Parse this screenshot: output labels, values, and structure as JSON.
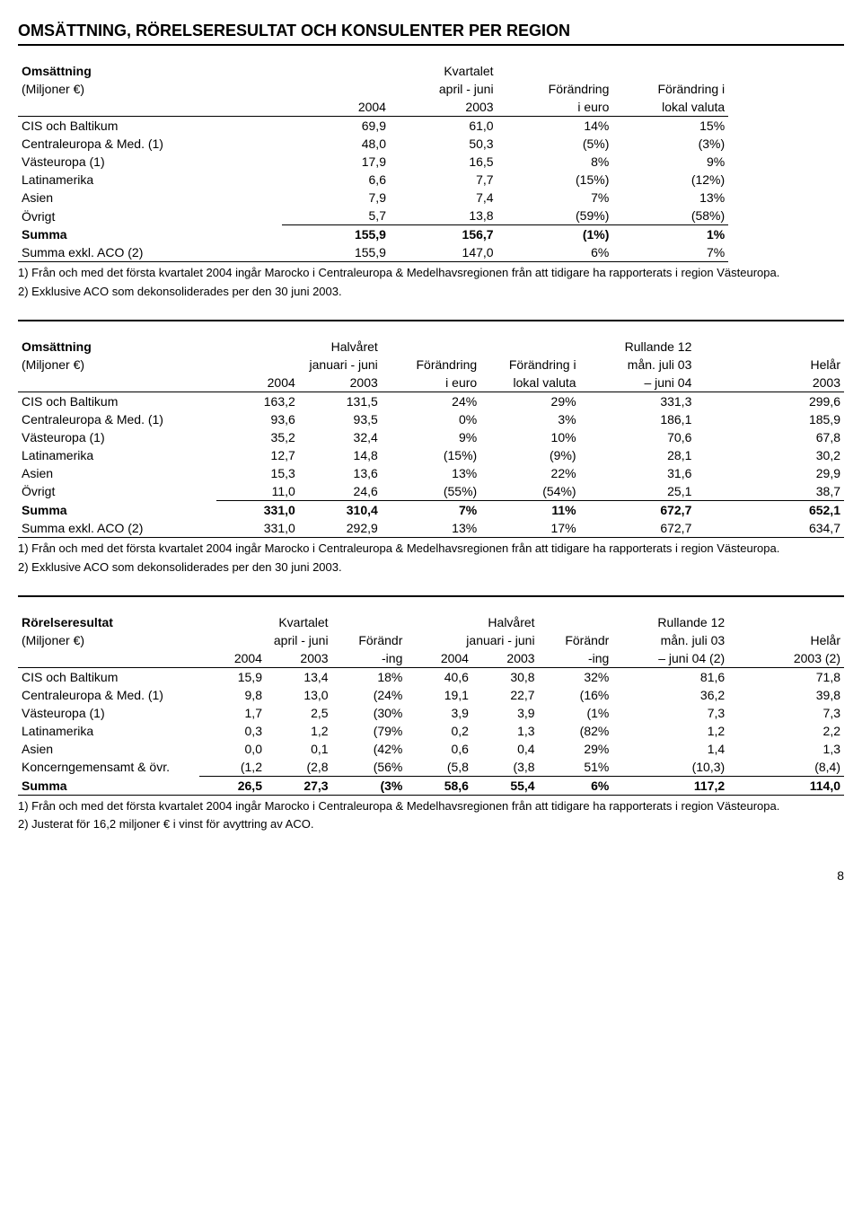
{
  "title": "OMSÄTTNING, RÖRELSERESULTAT OCH KONSULENTER PER REGION",
  "page_number": "8",
  "table1": {
    "header": {
      "row_label": "Omsättning",
      "row_sub": "(Miljoner €)",
      "period_label": "Kvartalet",
      "period_sub": "april - juni",
      "col_2004": "2004",
      "col_2003": "2003",
      "chg_euro_l1": "Förändring",
      "chg_euro_l2": "i euro",
      "chg_local_l1": "Förändring i",
      "chg_local_l2": "lokal valuta"
    },
    "rows": [
      {
        "label": "CIS och Baltikum",
        "v1": "69,9",
        "v2": "61,0",
        "c1": "14%",
        "c2": "15%"
      },
      {
        "label": "Centraleuropa & Med. (1)",
        "v1": "48,0",
        "v2": "50,3",
        "c1": "(5%)",
        "c2": "(3%)"
      },
      {
        "label": "Västeuropa (1)",
        "v1": "17,9",
        "v2": "16,5",
        "c1": "8%",
        "c2": "9%"
      },
      {
        "label": "Latinamerika",
        "v1": "6,6",
        "v2": "7,7",
        "c1": "(15%)",
        "c2": "(12%)"
      },
      {
        "label": "Asien",
        "v1": "7,9",
        "v2": "7,4",
        "c1": "7%",
        "c2": "13%"
      },
      {
        "label": "Övrigt",
        "v1": "5,7",
        "v2": "13,8",
        "c1": "(59%)",
        "c2": "(58%)",
        "underline": true
      },
      {
        "label": "Summa",
        "v1": "155,9",
        "v2": "156,7",
        "c1": "(1%)",
        "c2": "1%",
        "bold": true
      },
      {
        "label": "Summa exkl. ACO (2)",
        "v1": "155,9",
        "v2": "147,0",
        "c1": "6%",
        "c2": "7%",
        "bb": true
      }
    ],
    "footnote1": "1) Från och med det första kvartalet 2004 ingår Marocko i Centraleuropa & Medelhavsregionen från att tidigare ha rapporterats i region Västeuropa.",
    "footnote2": "2) Exklusive ACO som dekonsoliderades per den 30 juni 2003."
  },
  "table2": {
    "header": {
      "row_label": "Omsättning",
      "row_sub": "(Miljoner €)",
      "period_label": "Halvåret",
      "period_sub": "januari - juni",
      "col_2004": "2004",
      "col_2003": "2003",
      "chg_euro_l1": "Förändring",
      "chg_euro_l2": "i euro",
      "chg_local_l1": "Förändring i",
      "chg_local_l2": "lokal valuta",
      "rolling_l1": "Rullande 12",
      "rolling_l2": "mån. juli 03",
      "rolling_l3": "– juni 04",
      "fy_l1": "Helår",
      "fy_l2": "2003"
    },
    "rows": [
      {
        "label": "CIS och Baltikum",
        "v1": "163,2",
        "v2": "131,5",
        "c1": "24%",
        "c2": "29%",
        "r": "331,3",
        "f": "299,6"
      },
      {
        "label": "Centraleuropa & Med. (1)",
        "v1": "93,6",
        "v2": "93,5",
        "c1": "0%",
        "c2": "3%",
        "r": "186,1",
        "f": "185,9"
      },
      {
        "label": "Västeuropa (1)",
        "v1": "35,2",
        "v2": "32,4",
        "c1": "9%",
        "c2": "10%",
        "r": "70,6",
        "f": "67,8"
      },
      {
        "label": "Latinamerika",
        "v1": "12,7",
        "v2": "14,8",
        "c1": "(15%)",
        "c2": "(9%)",
        "r": "28,1",
        "f": "30,2"
      },
      {
        "label": "Asien",
        "v1": "15,3",
        "v2": "13,6",
        "c1": "13%",
        "c2": "22%",
        "r": "31,6",
        "f": "29,9"
      },
      {
        "label": "Övrigt",
        "v1": "11,0",
        "v2": "24,6",
        "c1": "(55%)",
        "c2": "(54%)",
        "r": "25,1",
        "f": "38,7",
        "underline": true
      },
      {
        "label": "Summa",
        "v1": "331,0",
        "v2": "310,4",
        "c1": "7%",
        "c2": "11%",
        "r": "672,7",
        "f": "652,1",
        "bold": true
      },
      {
        "label": "Summa exkl. ACO (2)",
        "v1": "331,0",
        "v2": "292,9",
        "c1": "13%",
        "c2": "17%",
        "r": "672,7",
        "f": "634,7",
        "bb": true
      }
    ],
    "footnote1": "1) Från och med det första kvartalet 2004 ingår Marocko i Centraleuropa & Medelhavsregionen från att tidigare ha rapporterats i region Västeuropa.",
    "footnote2": "2) Exklusive ACO som dekonsoliderades per den 30 juni 2003."
  },
  "table3": {
    "header": {
      "row_label": "Rörelseresultat",
      "row_sub": "(Miljoner €)",
      "q_label": "Kvartalet",
      "q_sub": "april - juni",
      "h_label": "Halvåret",
      "h_sub": "januari - juni",
      "col_2004": "2004",
      "col_2003": "2003",
      "chg_l1": "Förändr",
      "chg_l2": "-ing",
      "rolling_l1": "Rullande 12",
      "rolling_l2": "mån. juli 03",
      "rolling_l3": "– juni 04 (2)",
      "fy_l1": "Helår",
      "fy_l2": "2003 (2)"
    },
    "rows": [
      {
        "label": "CIS och Baltikum",
        "q1": "15,9",
        "q2": "13,4",
        "qc": "18%",
        "h1": "40,6",
        "h2": "30,8",
        "hc": "32%",
        "r": "81,6",
        "f": "71,8"
      },
      {
        "label": "Centraleuropa & Med. (1)",
        "q1": "9,8",
        "q2": "13,0",
        "qc": "(24%",
        "h1": "19,1",
        "h2": "22,7",
        "hc": "(16%",
        "r": "36,2",
        "f": "39,8"
      },
      {
        "label": "Västeuropa (1)",
        "q1": "1,7",
        "q2": "2,5",
        "qc": "(30%",
        "h1": "3,9",
        "h2": "3,9",
        "hc": "(1%",
        "r": "7,3",
        "f": "7,3"
      },
      {
        "label": "Latinamerika",
        "q1": "0,3",
        "q2": "1,2",
        "qc": "(79%",
        "h1": "0,2",
        "h2": "1,3",
        "hc": "(82%",
        "r": "1,2",
        "f": "2,2"
      },
      {
        "label": "Asien",
        "q1": "0,0",
        "q2": "0,1",
        "qc": "(42%",
        "h1": "0,6",
        "h2": "0,4",
        "hc": "29%",
        "r": "1,4",
        "f": "1,3"
      },
      {
        "label": "Koncerngemensamt & övr.",
        "q1": "(1,2",
        "q2": "(2,8",
        "qc": "(56%",
        "h1": "(5,8",
        "h2": "(3,8",
        "hc": "51%",
        "r": "(10,3)",
        "f": "(8,4)",
        "underline": true
      },
      {
        "label": "Summa",
        "q1": "26,5",
        "q2": "27,3",
        "qc": "(3%",
        "h1": "58,6",
        "h2": "55,4",
        "hc": "6%",
        "r": "117,2",
        "f": "114,0",
        "bold": true,
        "bb": true
      }
    ],
    "footnote1": "1) Från och med det första kvartalet 2004 ingår Marocko i Centraleuropa & Medelhavsregionen från att tidigare ha rapporterats i region Västeuropa.",
    "footnote2": "2) Justerat för 16,2 miljoner € i vinst för avyttring av ACO."
  }
}
